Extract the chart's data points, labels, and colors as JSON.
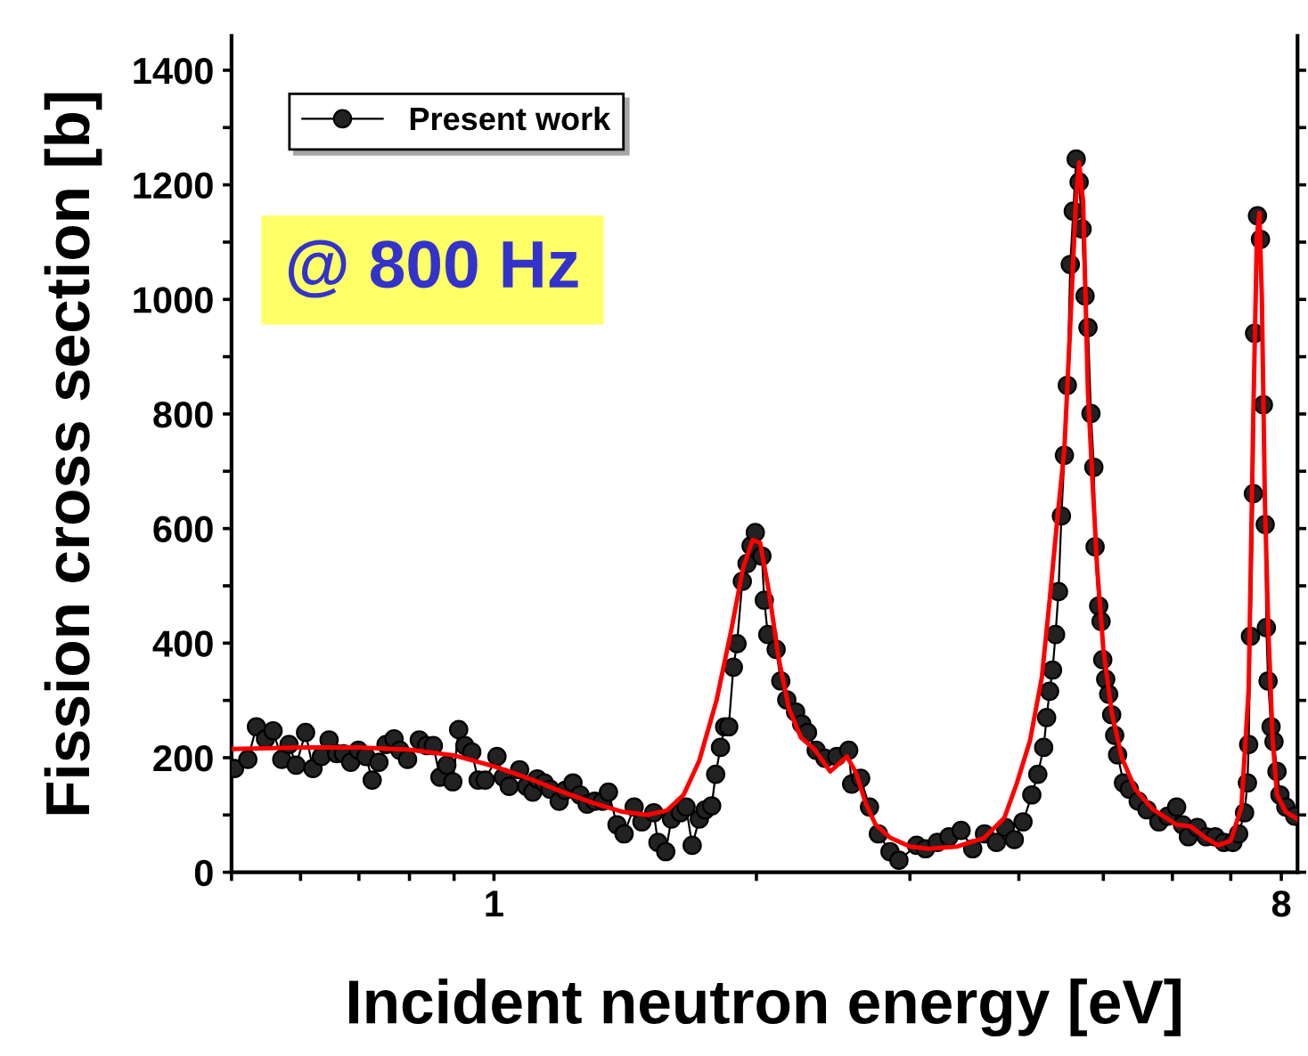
{
  "chart_data": {
    "type": "line",
    "xlabel": "Incident neutron energy [eV]",
    "ylabel": "Fission cross section [b]",
    "log": "x",
    "legend": "top left",
    "annotations": [
      "@ 800 Hz"
    ],
    "xlim": [
      0.5,
      8.35
    ],
    "ylim": [
      0,
      1460
    ],
    "xticks": [
      {
        "value": 0.5,
        "label": null
      },
      {
        "value": 0.6,
        "label": null
      },
      {
        "value": 0.7,
        "label": null
      },
      {
        "value": 0.8,
        "label": null
      },
      {
        "value": 0.9,
        "label": null
      },
      1,
      {
        "value": 2,
        "label": null
      },
      {
        "value": 3,
        "label": null
      },
      {
        "value": 4,
        "label": null
      },
      {
        "value": 5,
        "label": null
      },
      {
        "value": 6,
        "label": null
      },
      {
        "value": 7,
        "label": null
      },
      8
    ],
    "yticks": [
      0,
      {
        "value": 100,
        "label": null
      },
      200,
      {
        "value": 300,
        "label": null
      },
      400,
      {
        "value": 500,
        "label": null
      },
      600,
      {
        "value": 700,
        "label": null
      },
      800,
      {
        "value": 900,
        "label": null
      },
      1000,
      {
        "value": 1100,
        "label": null
      },
      1200,
      {
        "value": 1300,
        "label": null
      },
      1400
    ],
    "series": [
      {
        "name": "Present work",
        "color": "#000000",
        "marker": "circle",
        "x": [
          0.504,
          0.522,
          0.534,
          0.547,
          0.558,
          0.571,
          0.582,
          0.593,
          0.608,
          0.62,
          0.634,
          0.647,
          0.66,
          0.672,
          0.685,
          0.699,
          0.713,
          0.725,
          0.738,
          0.752,
          0.768,
          0.78,
          0.796,
          0.821,
          0.837,
          0.852,
          0.867,
          0.883,
          0.897,
          0.911,
          0.926,
          0.943,
          0.959,
          0.977,
          1.008,
          1.025,
          1.041,
          1.07,
          1.09,
          1.108,
          1.121,
          1.142,
          1.16,
          1.188,
          1.207,
          1.232,
          1.255,
          1.279,
          1.305,
          1.332,
          1.353,
          1.384,
          1.41,
          1.448,
          1.478,
          1.525,
          1.542,
          1.574,
          1.598,
          1.636,
          1.661,
          1.688,
          1.72,
          1.747,
          1.777,
          1.796,
          1.819,
          1.839,
          1.859,
          1.882,
          1.9,
          1.927,
          1.951,
          1.972,
          1.994,
          2.029,
          2.042,
          2.061,
          2.107,
          2.133,
          2.167,
          2.218,
          2.254,
          2.289,
          2.342,
          2.397,
          2.473,
          2.552,
          2.572,
          2.634,
          2.696,
          2.76,
          2.846,
          2.914,
          3.053,
          3.126,
          3.225,
          3.326,
          3.434,
          3.541,
          3.653,
          3.77,
          3.86,
          3.952,
          4.044,
          4.139,
          4.205,
          4.271,
          4.304,
          4.338,
          4.372,
          4.407,
          4.441,
          4.476,
          4.511,
          4.546,
          4.582,
          4.618,
          4.654,
          4.69,
          4.727,
          4.764,
          4.801,
          4.839,
          4.876,
          4.892,
          4.939,
          4.97,
          4.992,
          5.031,
          5.071,
          5.111,
          5.152,
          5.192,
          5.273,
          5.355,
          5.482,
          5.611,
          5.79,
          5.928,
          6.068,
          6.162,
          6.259,
          6.409,
          6.561,
          6.717,
          6.874,
          7.039,
          7.147,
          7.26,
          7.315,
          7.339,
          7.374,
          7.431,
          7.455,
          7.512,
          7.571,
          7.63,
          7.667,
          7.69,
          7.725,
          7.786,
          7.847,
          7.909,
          7.971,
          8.096,
          8.288
        ],
        "values": [
          181,
          197,
          254,
          233,
          247,
          197,
          223,
          187,
          244,
          181,
          202,
          231,
          207,
          207,
          192,
          213,
          202,
          161,
          192,
          223,
          233,
          213,
          197,
          231,
          221,
          221,
          166,
          187,
          158,
          249,
          221,
          210,
          161,
          161,
          202,
          166,
          150,
          179,
          150,
          140,
          163,
          156,
          145,
          124,
          143,
          156,
          135,
          119,
          124,
          124,
          140,
          83,
          67,
          114,
          88,
          104,
          52,
          36,
          93,
          104,
          114,
          47,
          93,
          109,
          116,
          171,
          218,
          254,
          254,
          358,
          399,
          508,
          539,
          570,
          593,
          552,
          475,
          415,
          389,
          334,
          301,
          280,
          259,
          244,
          213,
          199,
          202,
          213,
          154,
          164,
          114,
          67,
          36,
          21,
          47,
          41,
          52,
          62,
          73,
          41,
          67,
          52,
          78,
          57,
          88,
          135,
          171,
          218,
          270,
          316,
          353,
          415,
          490,
          622,
          728,
          850,
          1061,
          1154,
          1245,
          1205,
          1123,
          1006,
          951,
          801,
          707,
          568,
          465,
          438,
          371,
          337,
          311,
          275,
          239,
          205,
          156,
          145,
          124,
          109,
          88,
          98,
          114,
          83,
          62,
          78,
          62,
          62,
          52,
          52,
          67,
          104,
          156,
          223,
          412,
          661,
          941,
          1146,
          1105,
          816,
          607,
          427,
          334,
          254,
          228,
          176,
          135,
          114,
          98
        ]
      },
      {
        "color": "#ff0000",
        "marker": "none",
        "x": [
          0.5,
          0.6,
          0.7,
          0.8,
          0.9,
          1.0,
          1.1,
          1.2,
          1.3,
          1.4,
          1.5,
          1.58,
          1.65,
          1.72,
          1.8,
          1.87,
          1.93,
          1.98,
          2.02,
          2.07,
          2.12,
          2.18,
          2.25,
          2.33,
          2.43,
          2.49,
          2.54,
          2.6,
          2.67,
          2.74,
          2.85,
          3.0,
          3.15,
          3.4,
          3.65,
          3.85,
          3.98,
          4.12,
          4.25,
          4.34,
          4.43,
          4.51,
          4.58,
          4.65,
          4.69,
          4.74,
          4.8,
          4.86,
          4.92,
          5.0,
          5.11,
          5.25,
          5.44,
          5.7,
          6.07,
          6.3,
          6.55,
          6.77,
          7.0,
          7.2,
          7.34,
          7.43,
          7.5,
          7.55,
          7.6,
          7.66,
          7.73,
          7.82,
          7.91,
          8.1,
          8.35
        ],
        "values": [
          215,
          218,
          218,
          214,
          204,
          185,
          163,
          140,
          121,
          106,
          100,
          108,
          135,
          195,
          300,
          420,
          530,
          580,
          575,
          485,
          375,
          285,
          235,
          215,
          176,
          190,
          202,
          175,
          120,
          83,
          60,
          45,
          41,
          45,
          60,
          95,
          156,
          230,
          340,
          477,
          620,
          736,
          950,
          1170,
          1239,
          1170,
          840,
          680,
          529,
          390,
          280,
          200,
          145,
          110,
          83,
          80,
          60,
          47,
          55,
          114,
          321,
          800,
          1110,
          1151,
          1000,
          650,
          425,
          230,
          135,
          105,
          93
        ]
      }
    ]
  }
}
